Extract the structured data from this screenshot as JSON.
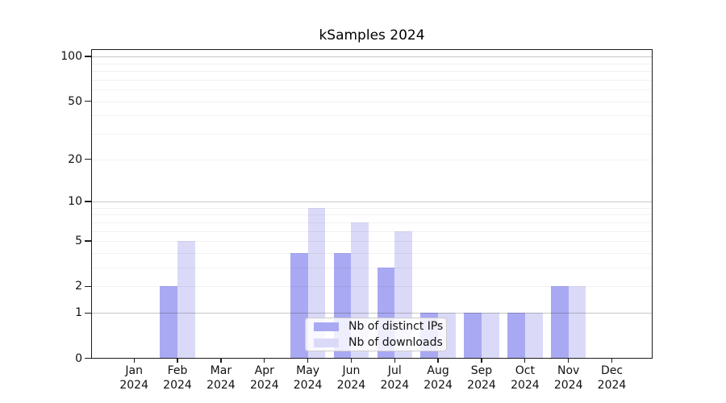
{
  "figure": {
    "title": "kSamples 2024"
  },
  "chart_data": {
    "type": "bar",
    "title": "kSamples 2024",
    "categories": [
      "Jan",
      "Feb",
      "Mar",
      "Apr",
      "May",
      "Jun",
      "Jul",
      "Aug",
      "Sep",
      "Oct",
      "Nov",
      "Dec"
    ],
    "x_sublabel": "2024",
    "series": [
      {
        "name": "Nb of distinct IPs",
        "color": "#a9a9f3",
        "values": [
          0,
          2,
          0,
          0,
          4,
          4,
          3,
          1,
          1,
          1,
          2,
          0
        ]
      },
      {
        "name": "Nb of downloads",
        "color": "#dadaf8",
        "values": [
          0,
          5,
          0,
          0,
          9,
          7,
          6,
          1,
          1,
          1,
          2,
          0
        ]
      }
    ],
    "y_ticks": [
      100,
      50,
      20,
      10,
      5,
      2,
      1,
      0
    ],
    "y_minor_gridlines": [
      2,
      3,
      4,
      5,
      6,
      7,
      8,
      9,
      20,
      30,
      40,
      50,
      60,
      70,
      80,
      90
    ],
    "y_major_gridlines": [
      1,
      10,
      100
    ],
    "y_scale": "log10(1+v)",
    "ylim": [
      0,
      112
    ],
    "grid": true,
    "legend_position": "inside-lower-center"
  }
}
